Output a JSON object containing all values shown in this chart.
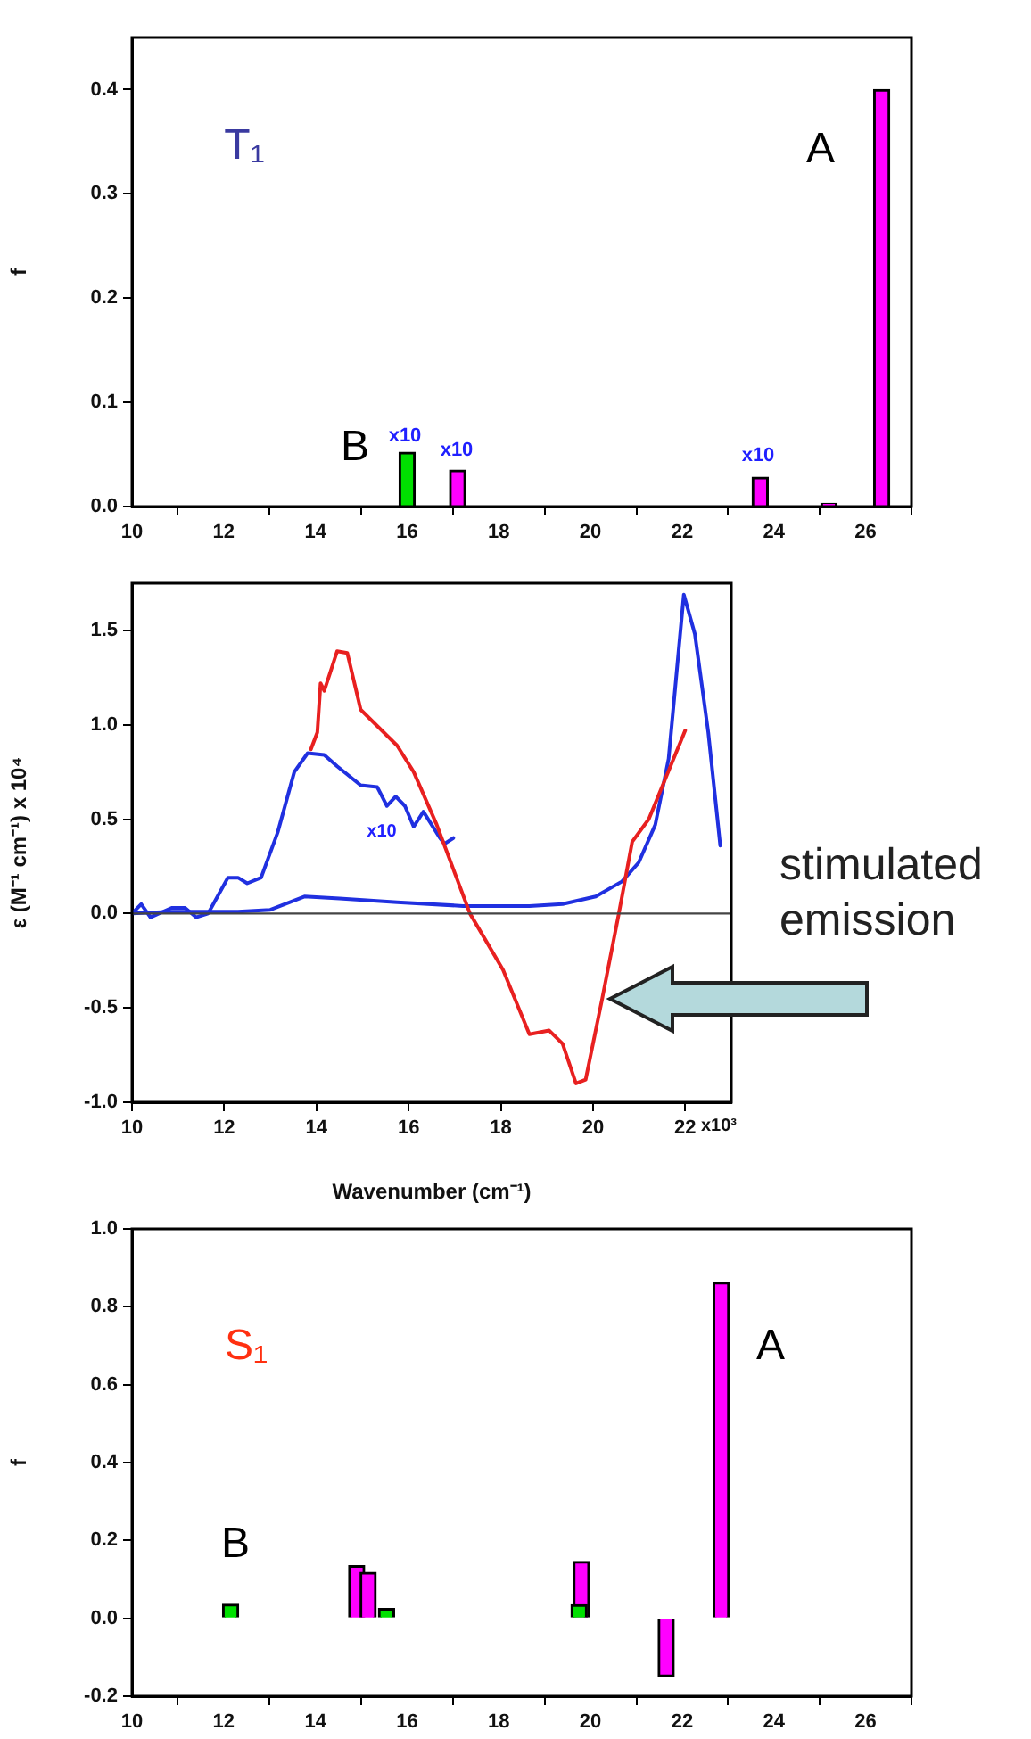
{
  "chart_data": [
    {
      "type": "bar",
      "ylabel": "f",
      "xlim": [
        10,
        27
      ],
      "ylim": [
        0,
        0.45
      ],
      "xticks": [
        10,
        12,
        14,
        16,
        18,
        20,
        22,
        24,
        26
      ],
      "yticks": [
        {
          "value": 0,
          "label": "0.0"
        },
        0.1,
        0.2,
        0.3,
        0.4
      ],
      "series": [
        {
          "color": "#ff00ff",
          "x": [
            17.1,
            23.7,
            25.2,
            26.35
          ],
          "values": [
            0.035,
            0.028,
            0.003,
            0.4
          ]
        },
        {
          "color": "#00e000",
          "x": [
            16.0
          ],
          "values": [
            0.052
          ]
        }
      ],
      "annotations": [
        "T₁",
        "A",
        "B",
        "x10",
        "x10",
        "x10"
      ]
    },
    {
      "type": "line",
      "xlabel": "Wavenumber (cm⁻¹)",
      "ylabel": "ε (M⁻¹ cm⁻¹) x 10⁴",
      "xlim": [
        10,
        23
      ],
      "ylim": [
        -1.0,
        1.75
      ],
      "xticks": [
        10,
        12,
        14,
        16,
        18,
        20,
        22
      ],
      "yticks": [
        {
          "value": -1,
          "label": "-1.0"
        },
        -0.5,
        {
          "value": 0,
          "label": "0.0"
        },
        0.5,
        {
          "value": 1,
          "label": "1.0"
        },
        1.5
      ],
      "marker": "none",
      "line_style": "solid",
      "ref_lines": [
        {
          "axis": "y",
          "value": 0,
          "color": "#444444"
        }
      ],
      "series": [
        {
          "color": "#2030e0",
          "x": [
            10,
            10.86,
            11.4,
            12.3,
            13.0,
            13.74,
            14.5,
            15.75,
            17.18,
            18.62,
            19.34,
            20.06,
            20.63,
            20.99,
            21.35,
            21.64,
            21.97,
            22.21,
            22.5,
            22.76
          ],
          "values": [
            0,
            0.01,
            0.01,
            0.01,
            0.02,
            0.09,
            0.08,
            0.06,
            0.04,
            0.04,
            0.05,
            0.09,
            0.17,
            0.27,
            0.47,
            0.82,
            1.69,
            1.48,
            0.96,
            0.36
          ]
        },
        {
          "color": "#2030e0",
          "x": [
            10,
            10.2,
            10.4,
            10.86,
            11.15,
            11.39,
            11.65,
            12.08,
            12.3,
            12.5,
            12.8,
            13.16,
            13.52,
            13.81,
            14.17,
            14.45,
            14.96,
            15.32,
            15.53,
            15.72,
            15.92,
            16.11,
            16.32,
            16.68,
            16.78,
            16.97
          ],
          "values": [
            0,
            0.05,
            -0.02,
            0.03,
            0.03,
            -0.02,
            0,
            0.19,
            0.19,
            0.16,
            0.19,
            0.43,
            0.75,
            0.85,
            0.84,
            0.78,
            0.68,
            0.67,
            0.57,
            0.62,
            0.57,
            0.46,
            0.54,
            0.4,
            0.37,
            0.4
          ]
        },
        {
          "color": "#e82020",
          "x": [
            13.88,
            14.02,
            14.09,
            14.17,
            14.45,
            14.67,
            14.96,
            15.75,
            16.11,
            16.61,
            17.33,
            18.05,
            18.62,
            19.05,
            19.34,
            19.63,
            19.84,
            20.2,
            20.56,
            20.85,
            21.21,
            22.0
          ],
          "values": [
            0.87,
            0.96,
            1.22,
            1.18,
            1.39,
            1.38,
            1.08,
            0.89,
            0.75,
            0.47,
            0,
            -0.3,
            -0.64,
            -0.62,
            -0.69,
            -0.9,
            -0.88,
            -0.45,
            0,
            0.38,
            0.5,
            0.97
          ]
        }
      ],
      "annotations": [
        "x10",
        "stimulated emission",
        "x10³"
      ]
    },
    {
      "type": "bar",
      "ylabel": "f",
      "xlim": [
        10,
        27
      ],
      "ylim": [
        -0.2,
        1.0
      ],
      "xticks": [
        10,
        12,
        14,
        16,
        18,
        20,
        22,
        24,
        26
      ],
      "yticks": [
        -0.2,
        {
          "value": 0,
          "label": "0.0"
        },
        0.2,
        0.4,
        0.6,
        0.8,
        {
          "value": 1,
          "label": "1.0"
        }
      ],
      "series": [
        {
          "color": "#ff00ff",
          "x": [
            14.9,
            15.15,
            19.8,
            21.65,
            22.85
          ],
          "values": [
            0.135,
            0.118,
            0.146,
            -0.15,
            0.863
          ]
        },
        {
          "color": "#00e000",
          "x": [
            12.15,
            15.55,
            19.75
          ],
          "values": [
            0.036,
            0.025,
            0.035
          ]
        }
      ],
      "annotations": [
        "S₁",
        "A",
        "B"
      ]
    }
  ]
}
